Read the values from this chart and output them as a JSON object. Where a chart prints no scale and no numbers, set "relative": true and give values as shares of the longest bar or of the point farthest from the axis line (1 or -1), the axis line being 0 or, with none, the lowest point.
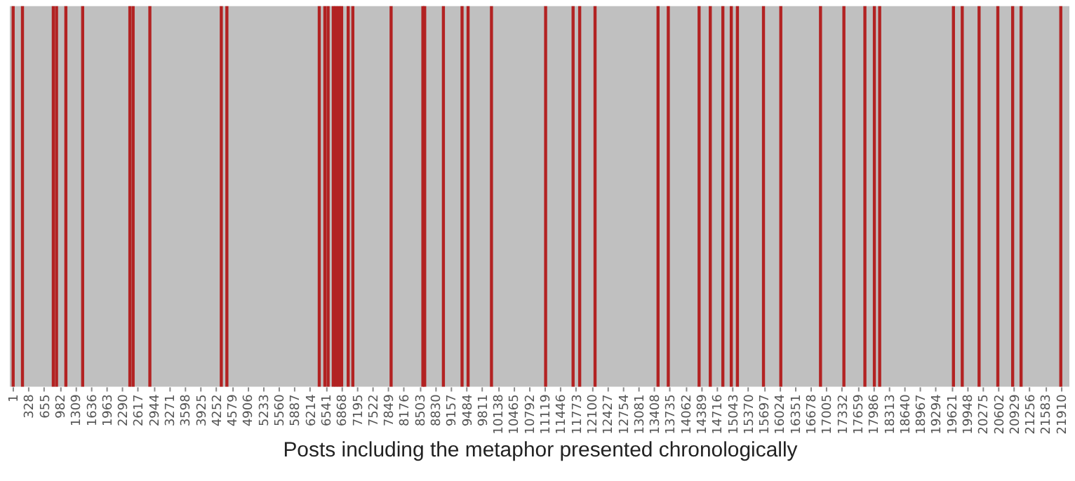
{
  "chart_data": {
    "type": "bar",
    "relative": true,
    "xlabel": "Posts including the metaphor presented chronologically",
    "x": [
      10,
      205,
      849,
      917,
      1112,
      1463,
      2450,
      2518,
      2868,
      4361,
      4478,
      6409,
      6526,
      6594,
      6702,
      6760,
      6819,
      6877,
      7014,
      7111,
      7911,
      8575,
      8613,
      9004,
      9394,
      9520,
      10009,
      11141,
      11715,
      11853,
      12174,
      13491,
      13705,
      14349,
      14583,
      14846,
      15022,
      15150,
      15695,
      16057,
      16887,
      17376,
      17815,
      18013,
      18124,
      19666,
      19850,
      20202,
      20594,
      20904,
      21080,
      21910
    ],
    "values": [
      1,
      1,
      1,
      1,
      1,
      1,
      1,
      1,
      1,
      1,
      1,
      1,
      1,
      1,
      1,
      1,
      1,
      1,
      1,
      1,
      1,
      1,
      1,
      1,
      1,
      1,
      1,
      1,
      1,
      1,
      1,
      1,
      1,
      1,
      1,
      1,
      1,
      1,
      1,
      1,
      1,
      1,
      1,
      1,
      1,
      1,
      1,
      1,
      1,
      1,
      1,
      1
    ],
    "color": "#b22222",
    "xlim": [
      -60,
      22090
    ],
    "xticks": [
      1,
      328,
      655,
      982,
      1309,
      1636,
      1963,
      2290,
      2617,
      2944,
      3271,
      3598,
      3925,
      4252,
      4579,
      4906,
      5233,
      5560,
      5887,
      6214,
      6541,
      6868,
      7195,
      7522,
      7849,
      8176,
      8503,
      8830,
      9157,
      9484,
      9811,
      10138,
      10465,
      10792,
      11119,
      11446,
      11773,
      12100,
      12427,
      12754,
      13081,
      13408,
      13735,
      14062,
      14389,
      14716,
      15043,
      15370,
      15697,
      16024,
      16351,
      16678,
      17005,
      17332,
      17659,
      17986,
      18313,
      18640,
      18967,
      19294,
      19621,
      19948,
      20275,
      20602,
      20929,
      21256,
      21583,
      21910
    ],
    "grid": false
  }
}
